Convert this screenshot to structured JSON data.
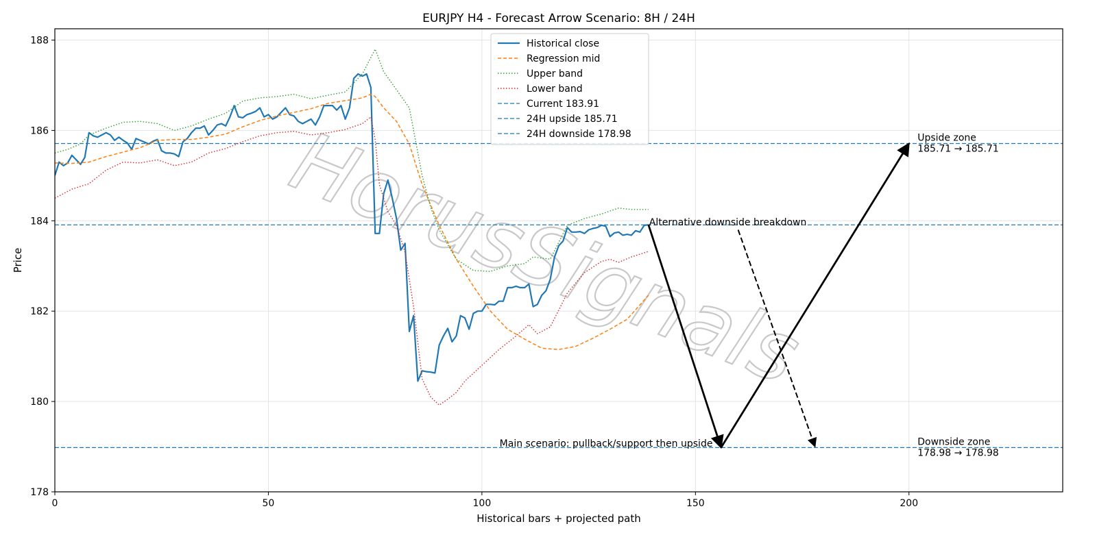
{
  "chart_data": {
    "type": "line",
    "title": "EURJPY H4 - Forecast Arrow Scenario: 8H / 24H",
    "xlabel": "Historical bars + projected path",
    "ylabel": "Price",
    "xlim": [
      0,
      236
    ],
    "ylim": [
      178,
      188.25
    ],
    "x_ticks": [
      0,
      50,
      100,
      150,
      200
    ],
    "y_ticks": [
      178,
      180,
      182,
      184,
      186,
      188
    ],
    "grid": true,
    "legend_position": "top-center",
    "watermark": "HorusSignals",
    "colors": {
      "historical": "#1f77b4",
      "regression": "#ff7f0e",
      "upper": "#2ca02c",
      "lower": "#d62728",
      "hline": "#1f77b4",
      "arrow": "#000000"
    },
    "series": [
      {
        "name": "Historical close",
        "style": "solid",
        "points": [
          [
            0,
            185.0
          ],
          [
            1,
            185.3
          ],
          [
            2,
            185.22
          ],
          [
            3,
            185.28
          ],
          [
            4,
            185.45
          ],
          [
            5,
            185.35
          ],
          [
            6,
            185.25
          ],
          [
            7,
            185.4
          ],
          [
            8,
            185.95
          ],
          [
            9,
            185.88
          ],
          [
            10,
            185.85
          ],
          [
            11,
            185.9
          ],
          [
            12,
            185.95
          ],
          [
            13,
            185.9
          ],
          [
            14,
            185.78
          ],
          [
            15,
            185.85
          ],
          [
            16,
            185.78
          ],
          [
            17,
            185.72
          ],
          [
            18,
            185.58
          ],
          [
            19,
            185.82
          ],
          [
            20,
            185.78
          ],
          [
            21,
            185.74
          ],
          [
            22,
            185.7
          ],
          [
            23,
            185.76
          ],
          [
            24,
            185.8
          ],
          [
            25,
            185.55
          ],
          [
            26,
            185.5
          ],
          [
            27,
            185.5
          ],
          [
            28,
            185.48
          ],
          [
            29,
            185.42
          ],
          [
            30,
            185.75
          ],
          [
            31,
            185.82
          ],
          [
            32,
            185.95
          ],
          [
            33,
            186.05
          ],
          [
            34,
            186.05
          ],
          [
            35,
            186.1
          ],
          [
            36,
            185.9
          ],
          [
            37,
            186.0
          ],
          [
            38,
            186.12
          ],
          [
            39,
            186.15
          ],
          [
            40,
            186.1
          ],
          [
            41,
            186.3
          ],
          [
            42,
            186.55
          ],
          [
            43,
            186.3
          ],
          [
            44,
            186.28
          ],
          [
            45,
            186.35
          ],
          [
            46,
            186.38
          ],
          [
            47,
            186.42
          ],
          [
            48,
            186.5
          ],
          [
            49,
            186.3
          ],
          [
            50,
            186.35
          ],
          [
            51,
            186.25
          ],
          [
            52,
            186.3
          ],
          [
            53,
            186.4
          ],
          [
            54,
            186.5
          ],
          [
            55,
            186.35
          ],
          [
            56,
            186.32
          ],
          [
            57,
            186.2
          ],
          [
            58,
            186.15
          ],
          [
            59,
            186.2
          ],
          [
            60,
            186.25
          ],
          [
            61,
            186.12
          ],
          [
            62,
            186.3
          ],
          [
            63,
            186.55
          ],
          [
            64,
            186.55
          ],
          [
            65,
            186.55
          ],
          [
            66,
            186.45
          ],
          [
            67,
            186.55
          ],
          [
            68,
            186.25
          ],
          [
            69,
            186.5
          ],
          [
            70,
            187.15
          ],
          [
            71,
            187.25
          ],
          [
            72,
            187.2
          ],
          [
            73,
            187.25
          ],
          [
            74,
            186.95
          ],
          [
            75,
            183.72
          ],
          [
            76,
            183.72
          ],
          [
            77,
            184.6
          ],
          [
            78,
            184.9
          ],
          [
            79,
            184.5
          ],
          [
            80,
            184.05
          ],
          [
            81,
            183.35
          ],
          [
            82,
            183.5
          ],
          [
            83,
            181.55
          ],
          [
            84,
            181.9
          ],
          [
            85,
            180.45
          ],
          [
            86,
            180.68
          ],
          [
            87,
            180.66
          ],
          [
            88,
            180.65
          ],
          [
            89,
            180.63
          ],
          [
            90,
            181.25
          ],
          [
            91,
            181.45
          ],
          [
            92,
            181.62
          ],
          [
            93,
            181.32
          ],
          [
            94,
            181.45
          ],
          [
            95,
            181.9
          ],
          [
            96,
            181.85
          ],
          [
            97,
            181.6
          ],
          [
            98,
            181.95
          ],
          [
            99,
            182.0
          ],
          [
            100,
            182.0
          ],
          [
            101,
            182.15
          ],
          [
            102,
            182.15
          ],
          [
            103,
            182.14
          ],
          [
            104,
            182.22
          ],
          [
            105,
            182.22
          ],
          [
            106,
            182.52
          ],
          [
            107,
            182.52
          ],
          [
            108,
            182.55
          ],
          [
            109,
            182.52
          ],
          [
            110,
            182.52
          ],
          [
            111,
            182.6
          ],
          [
            112,
            182.1
          ],
          [
            113,
            182.15
          ],
          [
            114,
            182.35
          ],
          [
            115,
            182.45
          ],
          [
            116,
            182.7
          ],
          [
            117,
            183.2
          ],
          [
            118,
            183.45
          ],
          [
            119,
            183.55
          ],
          [
            120,
            183.85
          ],
          [
            121,
            183.75
          ],
          [
            122,
            183.75
          ],
          [
            123,
            183.76
          ],
          [
            124,
            183.72
          ],
          [
            125,
            183.8
          ],
          [
            126,
            183.83
          ],
          [
            127,
            183.85
          ],
          [
            128,
            183.9
          ],
          [
            129,
            183.88
          ],
          [
            130,
            183.65
          ],
          [
            131,
            183.73
          ],
          [
            132,
            183.75
          ],
          [
            133,
            183.68
          ],
          [
            134,
            183.7
          ],
          [
            135,
            183.68
          ],
          [
            136,
            183.78
          ],
          [
            137,
            183.75
          ],
          [
            138,
            183.9
          ],
          [
            139,
            183.91
          ]
        ]
      },
      {
        "name": "Regression mid",
        "style": "dashed",
        "points": [
          [
            0,
            185.28
          ],
          [
            4,
            185.27
          ],
          [
            8,
            185.3
          ],
          [
            12,
            185.42
          ],
          [
            16,
            185.52
          ],
          [
            20,
            185.62
          ],
          [
            24,
            185.78
          ],
          [
            28,
            185.8
          ],
          [
            32,
            185.8
          ],
          [
            36,
            185.85
          ],
          [
            40,
            185.92
          ],
          [
            44,
            186.08
          ],
          [
            48,
            186.22
          ],
          [
            52,
            186.32
          ],
          [
            56,
            186.4
          ],
          [
            60,
            186.48
          ],
          [
            64,
            186.6
          ],
          [
            68,
            186.66
          ],
          [
            72,
            186.72
          ],
          [
            74,
            186.8
          ],
          [
            75,
            186.75
          ],
          [
            77,
            186.5
          ],
          [
            80,
            186.2
          ],
          [
            83,
            185.7
          ],
          [
            86,
            184.8
          ],
          [
            90,
            183.9
          ],
          [
            94,
            183.15
          ],
          [
            98,
            182.55
          ],
          [
            102,
            182.0
          ],
          [
            106,
            181.6
          ],
          [
            110,
            181.38
          ],
          [
            114,
            181.18
          ],
          [
            118,
            181.15
          ],
          [
            122,
            181.22
          ],
          [
            126,
            181.4
          ],
          [
            130,
            181.6
          ],
          [
            134,
            181.82
          ],
          [
            139,
            182.35
          ]
        ]
      },
      {
        "name": "Upper band",
        "style": "dotted",
        "points": [
          [
            0,
            185.5
          ],
          [
            3,
            185.58
          ],
          [
            6,
            185.7
          ],
          [
            8,
            185.9
          ],
          [
            12,
            186.05
          ],
          [
            16,
            186.18
          ],
          [
            20,
            186.2
          ],
          [
            24,
            186.15
          ],
          [
            28,
            186.0
          ],
          [
            32,
            186.1
          ],
          [
            36,
            186.25
          ],
          [
            40,
            186.38
          ],
          [
            44,
            186.65
          ],
          [
            48,
            186.72
          ],
          [
            52,
            186.75
          ],
          [
            56,
            186.8
          ],
          [
            60,
            186.7
          ],
          [
            64,
            186.78
          ],
          [
            68,
            186.85
          ],
          [
            72,
            187.25
          ],
          [
            75,
            187.8
          ],
          [
            77,
            187.3
          ],
          [
            80,
            186.9
          ],
          [
            83,
            186.5
          ],
          [
            86,
            185.0
          ],
          [
            88,
            184.3
          ],
          [
            90,
            183.8
          ],
          [
            94,
            183.15
          ],
          [
            98,
            182.9
          ],
          [
            102,
            182.88
          ],
          [
            106,
            183.0
          ],
          [
            110,
            183.05
          ],
          [
            112,
            183.2
          ],
          [
            116,
            183.15
          ],
          [
            120,
            183.9
          ],
          [
            124,
            184.05
          ],
          [
            128,
            184.15
          ],
          [
            132,
            184.28
          ],
          [
            135,
            184.25
          ],
          [
            139,
            184.25
          ]
        ]
      },
      {
        "name": "Lower band",
        "style": "dotted",
        "points": [
          [
            0,
            184.5
          ],
          [
            4,
            184.7
          ],
          [
            8,
            184.82
          ],
          [
            12,
            185.12
          ],
          [
            16,
            185.3
          ],
          [
            20,
            185.28
          ],
          [
            24,
            185.35
          ],
          [
            28,
            185.22
          ],
          [
            32,
            185.3
          ],
          [
            36,
            185.5
          ],
          [
            40,
            185.6
          ],
          [
            44,
            185.75
          ],
          [
            48,
            185.88
          ],
          [
            52,
            185.95
          ],
          [
            56,
            185.98
          ],
          [
            60,
            185.9
          ],
          [
            64,
            185.95
          ],
          [
            68,
            186.02
          ],
          [
            72,
            186.15
          ],
          [
            74,
            186.3
          ],
          [
            75,
            185.8
          ],
          [
            76,
            184.8
          ],
          [
            78,
            184.2
          ],
          [
            80,
            183.9
          ],
          [
            82,
            183.3
          ],
          [
            84,
            182.1
          ],
          [
            86,
            180.5
          ],
          [
            88,
            180.1
          ],
          [
            90,
            179.92
          ],
          [
            92,
            180.05
          ],
          [
            94,
            180.2
          ],
          [
            96,
            180.45
          ],
          [
            100,
            180.8
          ],
          [
            104,
            181.15
          ],
          [
            108,
            181.45
          ],
          [
            111,
            181.7
          ],
          [
            113,
            181.5
          ],
          [
            116,
            181.65
          ],
          [
            120,
            182.4
          ],
          [
            124,
            182.85
          ],
          [
            128,
            183.1
          ],
          [
            130,
            183.15
          ],
          [
            132,
            183.08
          ],
          [
            135,
            183.2
          ],
          [
            139,
            183.32
          ]
        ]
      }
    ],
    "hlines": [
      {
        "name": "Current 183.91",
        "value": 183.91
      },
      {
        "name": "24H upside 185.71",
        "value": 185.71
      },
      {
        "name": "24H downside 178.98",
        "value": 178.98
      }
    ],
    "arrows": [
      {
        "from": [
          139,
          183.91
        ],
        "to": [
          156,
          178.98
        ],
        "style": "solid"
      },
      {
        "from": [
          156,
          178.98
        ],
        "to": [
          200,
          185.71
        ],
        "style": "solid"
      },
      {
        "from": [
          160,
          183.8
        ],
        "to": [
          178,
          179.0
        ],
        "style": "dashed"
      }
    ],
    "annotations": [
      {
        "id": "alt",
        "text": "Alternative downside breakdown",
        "x": 139,
        "y": 183.91
      },
      {
        "id": "main",
        "text": "Main scenario: pullback/support then upside",
        "x": 155,
        "y": 179.0
      },
      {
        "id": "upzone",
        "text": "Upside zone",
        "text2": "185.71 → 185.71",
        "x": 202,
        "y": 185.71
      },
      {
        "id": "downzone",
        "text": "Downside zone",
        "text2": "178.98 → 178.98",
        "x": 202,
        "y": 178.98
      }
    ]
  }
}
